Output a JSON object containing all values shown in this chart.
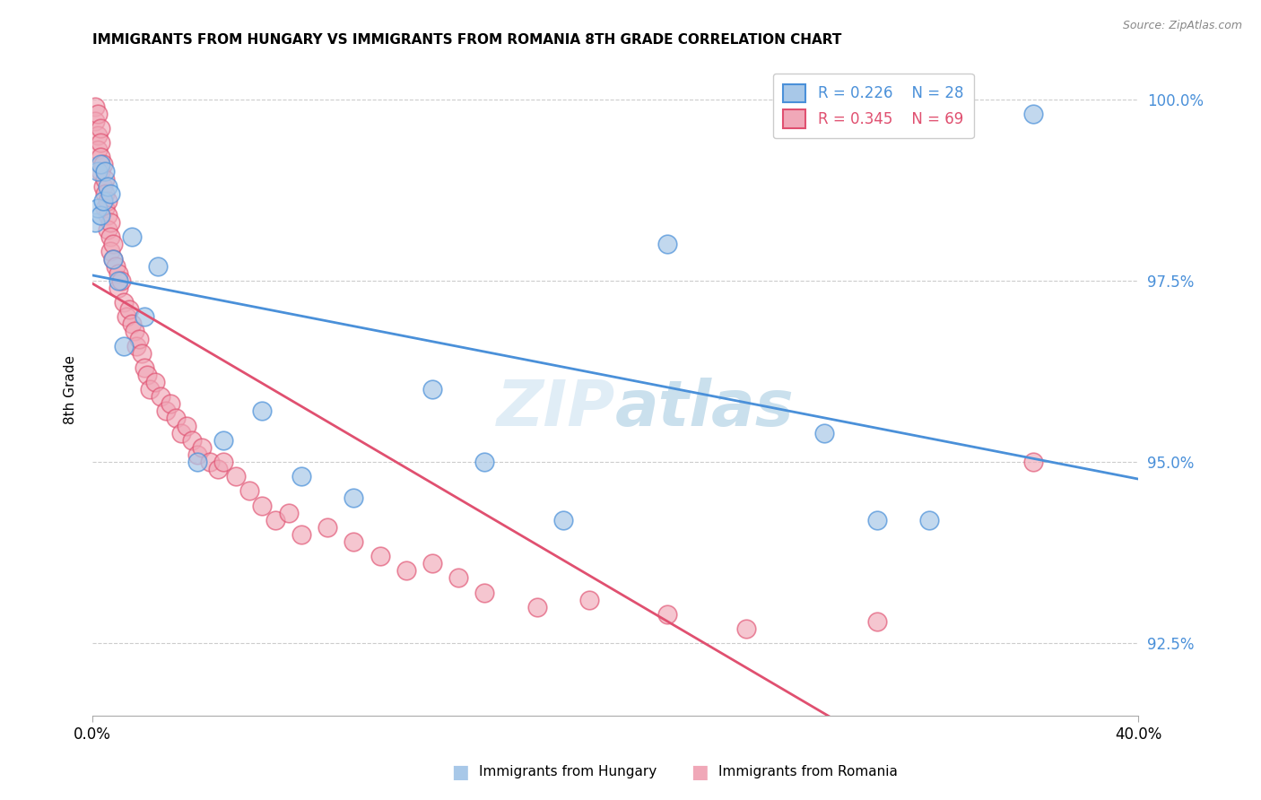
{
  "title": "IMMIGRANTS FROM HUNGARY VS IMMIGRANTS FROM ROMANIA 8TH GRADE CORRELATION CHART",
  "source": "Source: ZipAtlas.com",
  "ylabel_label": "8th Grade",
  "legend_label1": "Immigrants from Hungary",
  "legend_label2": "Immigrants from Romania",
  "R_hungary": 0.226,
  "N_hungary": 28,
  "R_romania": 0.345,
  "N_romania": 69,
  "color_hungary": "#a8c8e8",
  "color_romania": "#f0a8b8",
  "color_line_hungary": "#4a90d9",
  "color_line_romania": "#e05070",
  "hungary_x": [
    0.001,
    0.002,
    0.002,
    0.003,
    0.003,
    0.004,
    0.005,
    0.006,
    0.007,
    0.008,
    0.01,
    0.012,
    0.015,
    0.02,
    0.025,
    0.04,
    0.05,
    0.065,
    0.08,
    0.1,
    0.13,
    0.15,
    0.18,
    0.22,
    0.28,
    0.3,
    0.32,
    0.36
  ],
  "hungary_y": [
    0.983,
    0.99,
    0.985,
    0.991,
    0.984,
    0.986,
    0.99,
    0.988,
    0.987,
    0.978,
    0.975,
    0.966,
    0.981,
    0.97,
    0.977,
    0.95,
    0.953,
    0.957,
    0.948,
    0.945,
    0.96,
    0.95,
    0.942,
    0.98,
    0.954,
    0.942,
    0.942,
    0.998
  ],
  "romania_x": [
    0.001,
    0.001,
    0.002,
    0.002,
    0.002,
    0.003,
    0.003,
    0.003,
    0.003,
    0.004,
    0.004,
    0.005,
    0.005,
    0.005,
    0.006,
    0.006,
    0.006,
    0.007,
    0.007,
    0.007,
    0.008,
    0.008,
    0.009,
    0.01,
    0.01,
    0.011,
    0.012,
    0.013,
    0.014,
    0.015,
    0.016,
    0.017,
    0.018,
    0.019,
    0.02,
    0.021,
    0.022,
    0.024,
    0.026,
    0.028,
    0.03,
    0.032,
    0.034,
    0.036,
    0.038,
    0.04,
    0.042,
    0.045,
    0.048,
    0.05,
    0.055,
    0.06,
    0.065,
    0.07,
    0.075,
    0.08,
    0.09,
    0.1,
    0.11,
    0.12,
    0.13,
    0.14,
    0.15,
    0.17,
    0.19,
    0.22,
    0.25,
    0.3,
    0.36
  ],
  "romania_y": [
    0.999,
    0.997,
    0.998,
    0.995,
    0.993,
    0.996,
    0.994,
    0.992,
    0.99,
    0.991,
    0.988,
    0.989,
    0.987,
    0.985,
    0.986,
    0.984,
    0.982,
    0.983,
    0.981,
    0.979,
    0.98,
    0.978,
    0.977,
    0.976,
    0.974,
    0.975,
    0.972,
    0.97,
    0.971,
    0.969,
    0.968,
    0.966,
    0.967,
    0.965,
    0.963,
    0.962,
    0.96,
    0.961,
    0.959,
    0.957,
    0.958,
    0.956,
    0.954,
    0.955,
    0.953,
    0.951,
    0.952,
    0.95,
    0.949,
    0.95,
    0.948,
    0.946,
    0.944,
    0.942,
    0.943,
    0.94,
    0.941,
    0.939,
    0.937,
    0.935,
    0.936,
    0.934,
    0.932,
    0.93,
    0.931,
    0.929,
    0.927,
    0.928,
    0.95
  ],
  "xlim": [
    0.0,
    0.4
  ],
  "ylim": [
    0.915,
    1.005
  ],
  "yticks": [
    0.925,
    0.95,
    0.975,
    1.0
  ],
  "ytick_labels": [
    "92.5%",
    "95.0%",
    "97.5%",
    "100.0%"
  ],
  "background_color": "#ffffff",
  "title_fontsize": 11,
  "axis_color": "#4a90d9",
  "watermark_zip": "ZIP",
  "watermark_atlas": "atlas"
}
